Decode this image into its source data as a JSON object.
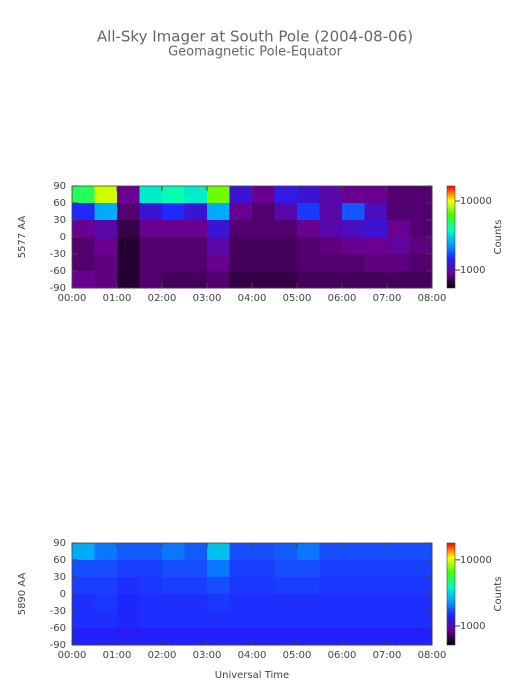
{
  "chart_data": [
    {
      "type": "heatmap",
      "title": "All-Sky Imager at South Pole (2004-08-06)",
      "subtitle": "Geomagnetic Pole-Equator",
      "y_label": "5577 AA",
      "colorbar_label": "Counts",
      "xlim": [
        0,
        8
      ],
      "xticks": [
        {
          "value": 0,
          "label": "00:00"
        },
        {
          "value": 1,
          "label": "01:00"
        },
        {
          "value": 2,
          "label": "02:00"
        },
        {
          "value": 3,
          "label": "03:00"
        },
        {
          "value": 4,
          "label": "04:00"
        },
        {
          "value": 5,
          "label": "05:00"
        },
        {
          "value": 6,
          "label": "06:00"
        },
        {
          "value": 7,
          "label": "07:00"
        },
        {
          "value": 8,
          "label": "08:00"
        }
      ],
      "ylim": [
        -90,
        90
      ],
      "yticks": [
        90,
        60,
        30,
        0,
        -30,
        -60,
        -90
      ],
      "clim": [
        550,
        16500
      ],
      "cticks": [
        1000,
        10000
      ],
      "log_color": true,
      "colormap": [
        "#000000",
        "#6a0090",
        "#2020ff",
        "#00a0ff",
        "#00ffc0",
        "#40ff00",
        "#ffff00",
        "#ff0000"
      ],
      "z": [
        [
          5000,
          9000,
          900,
          3500,
          4000,
          3500,
          7000,
          1200,
          900,
          1300,
          1200,
          1000,
          900,
          900,
          800,
          800
        ],
        [
          1500,
          2500,
          800,
          1200,
          1500,
          1200,
          2500,
          900,
          800,
          1000,
          1600,
          1000,
          1800,
          1100,
          800,
          800
        ],
        [
          900,
          1000,
          700,
          900,
          900,
          900,
          1200,
          800,
          800,
          800,
          900,
          1000,
          1100,
          1200,
          900,
          800
        ],
        [
          800,
          900,
          650,
          800,
          800,
          800,
          1000,
          750,
          750,
          750,
          800,
          850,
          900,
          900,
          950,
          850
        ],
        [
          800,
          850,
          650,
          800,
          800,
          800,
          900,
          750,
          750,
          750,
          800,
          800,
          800,
          850,
          850,
          800
        ],
        [
          900,
          850,
          650,
          800,
          750,
          750,
          800,
          700,
          700,
          700,
          750,
          750,
          750,
          750,
          750,
          750
        ]
      ]
    },
    {
      "type": "heatmap",
      "y_label": "5890 AA",
      "colorbar_label": "Counts",
      "x_label": "Universal Time",
      "xlim": [
        0,
        8
      ],
      "xticks": [
        {
          "value": 0,
          "label": "00:00"
        },
        {
          "value": 1,
          "label": "01:00"
        },
        {
          "value": 2,
          "label": "02:00"
        },
        {
          "value": 3,
          "label": "03:00"
        },
        {
          "value": 4,
          "label": "04:00"
        },
        {
          "value": 5,
          "label": "05:00"
        },
        {
          "value": 6,
          "label": "06:00"
        },
        {
          "value": 7,
          "label": "07:00"
        },
        {
          "value": 8,
          "label": "08:00"
        }
      ],
      "ylim": [
        -90,
        90
      ],
      "yticks": [
        90,
        60,
        30,
        0,
        -30,
        -60,
        -90
      ],
      "clim": [
        515,
        18000
      ],
      "cticks": [
        1000,
        10000
      ],
      "log_color": true,
      "colormap": [
        "#000000",
        "#6a0090",
        "#2020ff",
        "#00a0ff",
        "#00ffc0",
        "#40ff00",
        "#ffff00",
        "#ff0000"
      ],
      "z": [
        [
          2500,
          2000,
          1800,
          1800,
          2000,
          1800,
          2800,
          1700,
          1700,
          1800,
          2000,
          1700,
          1700,
          1700,
          1700,
          1700
        ],
        [
          1700,
          1700,
          1600,
          1600,
          1700,
          1700,
          2000,
          1600,
          1600,
          1700,
          1700,
          1600,
          1600,
          1600,
          1600,
          1600
        ],
        [
          1600,
          1600,
          1500,
          1550,
          1600,
          1600,
          1700,
          1550,
          1550,
          1600,
          1600,
          1550,
          1550,
          1550,
          1550,
          1550
        ],
        [
          1500,
          1550,
          1450,
          1500,
          1500,
          1500,
          1550,
          1500,
          1500,
          1500,
          1500,
          1500,
          1500,
          1500,
          1500,
          1500
        ],
        [
          1500,
          1500,
          1450,
          1500,
          1500,
          1500,
          1500,
          1500,
          1500,
          1500,
          1500,
          1500,
          1500,
          1500,
          1500,
          1500
        ],
        [
          1400,
          1400,
          1350,
          1400,
          1400,
          1400,
          1400,
          1400,
          1400,
          1400,
          1400,
          1400,
          1400,
          1400,
          1400,
          1400
        ]
      ]
    }
  ]
}
